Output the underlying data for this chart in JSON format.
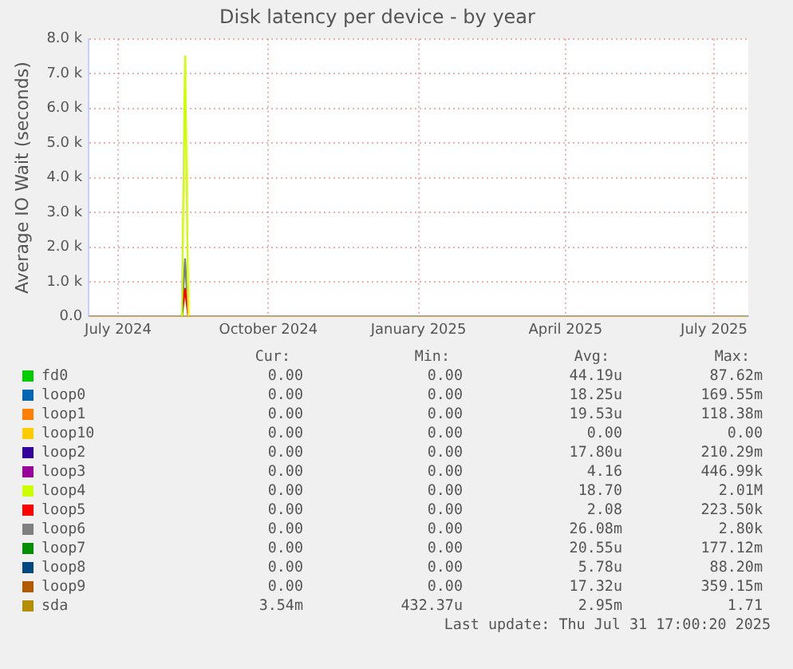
{
  "chart_data": {
    "type": "line",
    "title": "Disk latency per device - by year",
    "ylabel": "Average IO Wait (seconds)",
    "x": [
      "2024-06-13",
      "2024-08-09",
      "2024-08-11",
      "2024-08-13",
      "2025-07-22"
    ],
    "xlim": [
      "2024-06-13",
      "2025-07-22"
    ],
    "xticks": [
      {
        "value": "2024-07-01",
        "label": "July 2024"
      },
      {
        "value": "2024-10-01",
        "label": "October 2024"
      },
      {
        "value": "2025-01-01",
        "label": "January 2025"
      },
      {
        "value": "2025-04-01",
        "label": "April 2025"
      },
      {
        "value": "2025-07-01",
        "label": "July 2025"
      }
    ],
    "ylim": [
      0,
      8000
    ],
    "yticks": [
      {
        "value": 0,
        "label": "0.0"
      },
      {
        "value": 1000,
        "label": "1.0 k"
      },
      {
        "value": 2000,
        "label": "2.0 k"
      },
      {
        "value": 3000,
        "label": "3.0 k"
      },
      {
        "value": 4000,
        "label": "4.0 k"
      },
      {
        "value": 5000,
        "label": "5.0 k"
      },
      {
        "value": 6000,
        "label": "6.0 k"
      },
      {
        "value": 7000,
        "label": "7.0 k"
      },
      {
        "value": 8000,
        "label": "8.0 k"
      }
    ],
    "grid": true,
    "legend": "bottom",
    "marker": "none",
    "line_style": "solid",
    "series": [
      {
        "name": "fd0",
        "color": "#00cc00",
        "values": [
          null,
          null,
          null,
          null,
          null
        ]
      },
      {
        "name": "loop0",
        "color": "#0066b3",
        "values": [
          null,
          null,
          null,
          null,
          null
        ]
      },
      {
        "name": "loop1",
        "color": "#ff8000",
        "values": [
          null,
          null,
          null,
          null,
          null
        ]
      },
      {
        "name": "loop10",
        "color": "#ffcc00",
        "values": [
          null,
          null,
          null,
          null,
          null
        ]
      },
      {
        "name": "loop2",
        "color": "#330099",
        "values": [
          null,
          null,
          null,
          null,
          null
        ]
      },
      {
        "name": "loop3",
        "color": "#990099",
        "values": [
          null,
          null,
          null,
          null,
          null
        ]
      },
      {
        "name": "loop4",
        "color": "#ccff00",
        "values": [
          null,
          0,
          7500,
          0,
          null
        ]
      },
      {
        "name": "loop5",
        "color": "#ff0000",
        "values": [
          null,
          0,
          800,
          0,
          null
        ]
      },
      {
        "name": "loop6",
        "color": "#808080",
        "values": [
          null,
          0,
          1650,
          0,
          null
        ]
      },
      {
        "name": "loop7",
        "color": "#008f00",
        "values": [
          null,
          null,
          null,
          null,
          null
        ]
      },
      {
        "name": "loop8",
        "color": "#00487d",
        "values": [
          null,
          null,
          null,
          null,
          null
        ]
      },
      {
        "name": "loop9",
        "color": "#b35a00",
        "values": [
          null,
          null,
          null,
          null,
          null
        ]
      },
      {
        "name": "sda",
        "color": "#b38f00",
        "values": [
          0,
          0,
          0,
          0,
          0
        ]
      }
    ],
    "annotations": [
      "Cur:",
      "Min:",
      "Avg:",
      "Max:",
      "0.00",
      "0.00",
      "44.19u",
      "87.62m",
      "0.00",
      "0.00",
      "18.25u",
      "169.55m",
      "0.00",
      "0.00",
      "19.53u",
      "118.38m",
      "0.00",
      "0.00",
      "0.00",
      "0.00",
      "0.00",
      "0.00",
      "17.80u",
      "210.29m",
      "0.00",
      "0.00",
      "4.16",
      "446.99k",
      "0.00",
      "0.00",
      "18.70",
      "2.01M",
      "0.00",
      "0.00",
      "2.08",
      "223.50k",
      "0.00",
      "0.00",
      "26.08m",
      "2.80k",
      "0.00",
      "0.00",
      "20.55u",
      "177.12m",
      "0.00",
      "0.00",
      "5.78u",
      "88.20m",
      "0.00",
      "0.00",
      "17.32u",
      "359.15m",
      "3.54m",
      "432.37u",
      "2.95m",
      "1.71",
      "Last update: Thu Jul 31 17:00:20 2025"
    ]
  }
}
